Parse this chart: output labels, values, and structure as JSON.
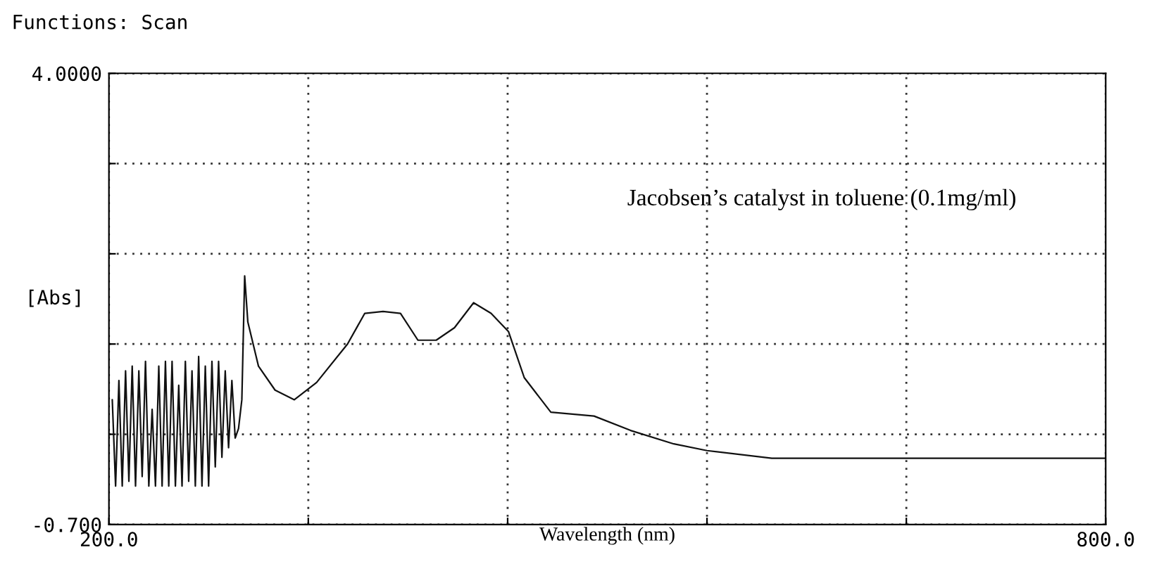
{
  "chart_data": {
    "type": "line",
    "title": "Functions: Scan",
    "xlabel": "Wavelength (nm)",
    "ylabel": "[Abs]",
    "annotations": [
      "Jacobsen’s catalyst in toluene (0.1mg/ml)"
    ],
    "series": [
      {
        "color": "#111111",
        "x": [
          202,
          204,
          206,
          208,
          210,
          212,
          214,
          216,
          218,
          220,
          222,
          224,
          226,
          228,
          230,
          232,
          234,
          236,
          238,
          240,
          242,
          244,
          246,
          248,
          250,
          252,
          254,
          256,
          258,
          260,
          262,
          264,
          266,
          268,
          270,
          272,
          274,
          276,
          278,
          280,
          281.7,
          283.6,
          290,
          300,
          311.6,
          325,
          343.6,
          354,
          365,
          375.5,
          386,
          397,
          408,
          419.5,
          430,
          440.5,
          450,
          466,
          492,
          514,
          540,
          560,
          599,
          700,
          800
        ],
        "values": [
          0.6,
          -0.3,
          0.8,
          -0.3,
          0.9,
          -0.25,
          0.95,
          -0.3,
          0.9,
          -0.2,
          1.0,
          -0.3,
          0.5,
          -0.3,
          0.95,
          -0.3,
          1.0,
          -0.3,
          1.0,
          -0.3,
          0.75,
          -0.3,
          1.0,
          -0.25,
          0.9,
          -0.3,
          1.05,
          -0.3,
          0.95,
          -0.3,
          1.0,
          -0.1,
          1.0,
          0.0,
          0.9,
          0.1,
          0.8,
          0.2,
          0.3,
          0.6,
          1.89,
          1.41,
          0.95,
          0.7,
          0.6,
          0.78,
          1.18,
          1.5,
          1.52,
          1.5,
          1.22,
          1.22,
          1.35,
          1.61,
          1.5,
          1.31,
          0.83,
          0.47,
          0.43,
          0.28,
          0.14,
          0.07,
          -0.01,
          -0.01,
          -0.01
        ]
      }
    ],
    "xlim": [
      200,
      800
    ],
    "xticks": [
      {
        "value": 200,
        "label": "200.0"
      },
      {
        "value": 320,
        "label": null
      },
      {
        "value": 440,
        "label": null
      },
      {
        "value": 560,
        "label": null
      },
      {
        "value": 680,
        "label": null
      },
      {
        "value": 800,
        "label": "800.0"
      }
    ],
    "ylim": [
      -0.7,
      4.0
    ],
    "yticks": [
      {
        "value": -0.7,
        "label": "-0.700"
      },
      {
        "value": 0.24,
        "label": null
      },
      {
        "value": 1.18,
        "label": null
      },
      {
        "value": 2.12,
        "label": null
      },
      {
        "value": 3.06,
        "label": null
      },
      {
        "value": 4.0,
        "label": "4.0000"
      }
    ],
    "grid": true,
    "legend": false,
    "marker": "none",
    "line_style": "solid"
  }
}
